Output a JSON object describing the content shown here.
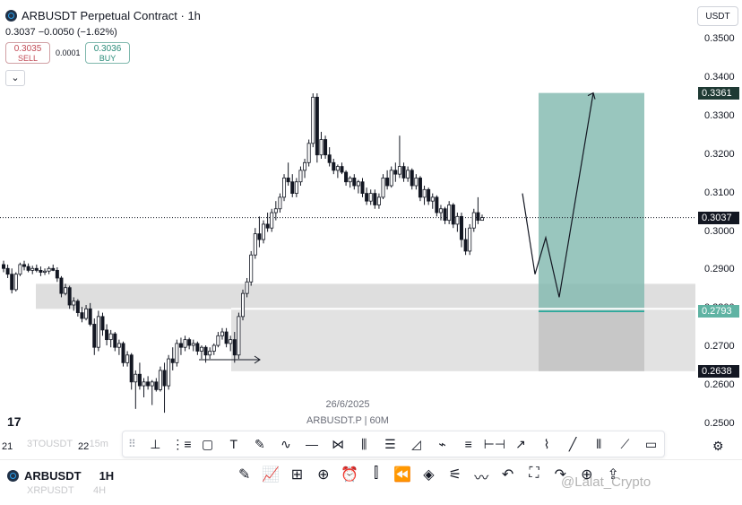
{
  "header": {
    "title": "ARBUSDT Perpetual Contract · 1h",
    "last_price": "0.3037",
    "change": "−0.0050 (−1.62%)"
  },
  "trade": {
    "sell_price": "0.3035",
    "sell_label": "SELL",
    "spread": "0.0001",
    "buy_price": "0.3036",
    "buy_label": "BUY",
    "collapse_icon": "chevron-down-icon"
  },
  "currency_label": "USDT",
  "price_axis": [
    "0.3500",
    "0.3400",
    "0.3300",
    "0.3200",
    "0.3100",
    "0.3000",
    "0.2900",
    "0.2800",
    "0.2700",
    "0.2600",
    "0.2500"
  ],
  "price_tags": {
    "target": "0.3361",
    "current": "0.3037",
    "entry": "0.2793",
    "stop": "0.2638"
  },
  "time_axis": [
    "21",
    "22"
  ],
  "watermark": {
    "date": "26/6/2025",
    "symbol": "ARBUSDT.P | 60M"
  },
  "tv_logo": "17",
  "drawing_tools": [
    "cursor-icon",
    "pitchfork-icon",
    "rectangle-icon",
    "text-icon",
    "brush-icon",
    "curve-icon",
    "horizontal-line-icon",
    "pattern-icon",
    "candles-icon",
    "fib-icon",
    "arc-icon",
    "path-icon",
    "lines-icon",
    "range-icon",
    "arrow-icon",
    "brush-2-icon",
    "trend-line-icon",
    "bars-icon",
    "polyline-icon",
    "comment-icon"
  ],
  "bottom": {
    "symbol": "ARBUSDT",
    "interval": "1H",
    "ghost_symbol_1": "3TOUSDT",
    "ghost_interval_1": "15m",
    "ghost_symbol_2": "XRPUSDT",
    "ghost_interval_2": "4H",
    "tools": [
      "pencil-icon",
      "indicators-icon",
      "layouts-icon",
      "add-icon",
      "alert-icon",
      "candle-type-icon",
      "replay-icon",
      "layers-icon",
      "settings-sliders-icon",
      "trend-icon",
      "undo-icon",
      "screenshot-icon",
      "redo-icon",
      "zoom-icon",
      "share-icon"
    ]
  },
  "credit": "@Lalat_Crypto",
  "colors": {
    "up": "#26a69a",
    "down": "#131722",
    "target_zone": "#80b8ae",
    "stop_zone": "#bdbdbd",
    "demand_zone": "#d4d4d4",
    "tag_dark": "#131722",
    "tag_green": "#5fb3a3"
  },
  "chart_data": {
    "type": "candlestick",
    "y_range": [
      0.246,
      0.355
    ],
    "candles": [
      [
        0.2915,
        0.2925,
        0.2895,
        0.2905
      ],
      [
        0.2905,
        0.2915,
        0.288,
        0.289
      ],
      [
        0.289,
        0.2905,
        0.284,
        0.285
      ],
      [
        0.285,
        0.2895,
        0.2845,
        0.289
      ],
      [
        0.289,
        0.292,
        0.2885,
        0.2915
      ],
      [
        0.2915,
        0.2925,
        0.29,
        0.291
      ],
      [
        0.291,
        0.2918,
        0.2895,
        0.29
      ],
      [
        0.29,
        0.2912,
        0.289,
        0.2905
      ],
      [
        0.2905,
        0.2915,
        0.2895,
        0.29
      ],
      [
        0.29,
        0.291,
        0.2885,
        0.2895
      ],
      [
        0.2895,
        0.2905,
        0.2888,
        0.2898
      ],
      [
        0.2898,
        0.291,
        0.289,
        0.2905
      ],
      [
        0.2905,
        0.2915,
        0.2898,
        0.29
      ],
      [
        0.29,
        0.2908,
        0.287,
        0.288
      ],
      [
        0.288,
        0.2885,
        0.283,
        0.284
      ],
      [
        0.284,
        0.2865,
        0.2835,
        0.2855
      ],
      [
        0.2855,
        0.286,
        0.28,
        0.281
      ],
      [
        0.281,
        0.283,
        0.2795,
        0.282
      ],
      [
        0.282,
        0.2825,
        0.278,
        0.279
      ],
      [
        0.279,
        0.2805,
        0.2765,
        0.2775
      ],
      [
        0.2775,
        0.281,
        0.277,
        0.28
      ],
      [
        0.28,
        0.2815,
        0.2755,
        0.276
      ],
      [
        0.276,
        0.2775,
        0.268,
        0.27
      ],
      [
        0.27,
        0.2795,
        0.269,
        0.278
      ],
      [
        0.278,
        0.279,
        0.273,
        0.2745
      ],
      [
        0.2745,
        0.276,
        0.2705,
        0.272
      ],
      [
        0.272,
        0.2745,
        0.27,
        0.2735
      ],
      [
        0.2735,
        0.274,
        0.269,
        0.27
      ],
      [
        0.27,
        0.272,
        0.268,
        0.271
      ],
      [
        0.271,
        0.2715,
        0.265,
        0.266
      ],
      [
        0.266,
        0.269,
        0.265,
        0.268
      ],
      [
        0.268,
        0.2685,
        0.259,
        0.261
      ],
      [
        0.261,
        0.264,
        0.254,
        0.263
      ],
      [
        0.263,
        0.266,
        0.259,
        0.26
      ],
      [
        0.26,
        0.262,
        0.257,
        0.261
      ],
      [
        0.261,
        0.2625,
        0.259,
        0.26
      ],
      [
        0.26,
        0.2615,
        0.255,
        0.261
      ],
      [
        0.261,
        0.262,
        0.2585,
        0.259
      ],
      [
        0.259,
        0.265,
        0.2585,
        0.264
      ],
      [
        0.264,
        0.266,
        0.253,
        0.26
      ],
      [
        0.26,
        0.268,
        0.259,
        0.267
      ],
      [
        0.267,
        0.27,
        0.264,
        0.266
      ],
      [
        0.266,
        0.272,
        0.265,
        0.271
      ],
      [
        0.271,
        0.2725,
        0.268,
        0.27
      ],
      [
        0.27,
        0.273,
        0.269,
        0.272
      ],
      [
        0.272,
        0.2725,
        0.2695,
        0.2705
      ],
      [
        0.2705,
        0.272,
        0.269,
        0.271
      ],
      [
        0.271,
        0.2715,
        0.268,
        0.269
      ],
      [
        0.269,
        0.2705,
        0.267,
        0.27
      ],
      [
        0.27,
        0.2705,
        0.266,
        0.268
      ],
      [
        0.268,
        0.27,
        0.267,
        0.269
      ],
      [
        0.269,
        0.271,
        0.268,
        0.2705
      ],
      [
        0.2705,
        0.274,
        0.27,
        0.273
      ],
      [
        0.273,
        0.275,
        0.272,
        0.274
      ],
      [
        0.274,
        0.275,
        0.27,
        0.271
      ],
      [
        0.271,
        0.273,
        0.269,
        0.272
      ],
      [
        0.272,
        0.274,
        0.266,
        0.268
      ],
      [
        0.268,
        0.279,
        0.267,
        0.278
      ],
      [
        0.278,
        0.285,
        0.277,
        0.284
      ],
      [
        0.284,
        0.288,
        0.283,
        0.287
      ],
      [
        0.287,
        0.295,
        0.286,
        0.294
      ],
      [
        0.294,
        0.301,
        0.293,
        0.2995
      ],
      [
        0.2995,
        0.304,
        0.296,
        0.298
      ],
      [
        0.298,
        0.303,
        0.297,
        0.302
      ],
      [
        0.302,
        0.305,
        0.3,
        0.301
      ],
      [
        0.301,
        0.306,
        0.3,
        0.305
      ],
      [
        0.305,
        0.308,
        0.303,
        0.306
      ],
      [
        0.306,
        0.31,
        0.305,
        0.309
      ],
      [
        0.309,
        0.315,
        0.308,
        0.314
      ],
      [
        0.314,
        0.318,
        0.312,
        0.313
      ],
      [
        0.313,
        0.315,
        0.309,
        0.31
      ],
      [
        0.31,
        0.314,
        0.309,
        0.313
      ],
      [
        0.313,
        0.317,
        0.312,
        0.316
      ],
      [
        0.316,
        0.319,
        0.314,
        0.318
      ],
      [
        0.318,
        0.324,
        0.317,
        0.323
      ],
      [
        0.323,
        0.336,
        0.322,
        0.335
      ],
      [
        0.335,
        0.336,
        0.318,
        0.32
      ],
      [
        0.32,
        0.326,
        0.319,
        0.324
      ],
      [
        0.324,
        0.325,
        0.319,
        0.32
      ],
      [
        0.32,
        0.322,
        0.317,
        0.318
      ],
      [
        0.318,
        0.319,
        0.315,
        0.316
      ],
      [
        0.316,
        0.3175,
        0.314,
        0.317
      ],
      [
        0.317,
        0.318,
        0.315,
        0.3155
      ],
      [
        0.3155,
        0.316,
        0.312,
        0.313
      ],
      [
        0.313,
        0.3145,
        0.3115,
        0.314
      ],
      [
        0.314,
        0.315,
        0.311,
        0.312
      ],
      [
        0.312,
        0.3135,
        0.31,
        0.313
      ],
      [
        0.313,
        0.314,
        0.309,
        0.31
      ],
      [
        0.31,
        0.3115,
        0.307,
        0.308
      ],
      [
        0.308,
        0.311,
        0.307,
        0.31
      ],
      [
        0.31,
        0.311,
        0.306,
        0.307
      ],
      [
        0.307,
        0.31,
        0.306,
        0.309
      ],
      [
        0.309,
        0.315,
        0.3085,
        0.314
      ],
      [
        0.314,
        0.316,
        0.311,
        0.312
      ],
      [
        0.312,
        0.317,
        0.3115,
        0.316
      ],
      [
        0.316,
        0.318,
        0.313,
        0.315
      ],
      [
        0.315,
        0.325,
        0.314,
        0.317
      ],
      [
        0.317,
        0.318,
        0.313,
        0.314
      ],
      [
        0.314,
        0.317,
        0.313,
        0.316
      ],
      [
        0.316,
        0.3165,
        0.311,
        0.312
      ],
      [
        0.312,
        0.315,
        0.311,
        0.314
      ],
      [
        0.314,
        0.3145,
        0.308,
        0.309
      ],
      [
        0.309,
        0.312,
        0.307,
        0.311
      ],
      [
        0.311,
        0.3115,
        0.307,
        0.308
      ],
      [
        0.308,
        0.31,
        0.306,
        0.309
      ],
      [
        0.309,
        0.3095,
        0.304,
        0.305
      ],
      [
        0.305,
        0.307,
        0.303,
        0.306
      ],
      [
        0.306,
        0.3065,
        0.302,
        0.303
      ],
      [
        0.303,
        0.308,
        0.302,
        0.307
      ],
      [
        0.307,
        0.3075,
        0.301,
        0.302
      ],
      [
        0.302,
        0.305,
        0.3,
        0.304
      ],
      [
        0.304,
        0.305,
        0.296,
        0.298
      ],
      [
        0.298,
        0.301,
        0.294,
        0.295
      ],
      [
        0.295,
        0.302,
        0.294,
        0.301
      ],
      [
        0.301,
        0.306,
        0.3,
        0.305
      ],
      [
        0.305,
        0.309,
        0.302,
        0.303
      ],
      [
        0.303,
        0.3045,
        0.303,
        0.3037
      ]
    ],
    "projection": [
      0.31,
      0.289,
      0.2985,
      0.283,
      0.3361
    ],
    "long_position": {
      "entry": 0.2793,
      "target": 0.3361,
      "stop": 0.2638
    },
    "demand_zone": [
      0.28,
      0.2865
    ]
  }
}
